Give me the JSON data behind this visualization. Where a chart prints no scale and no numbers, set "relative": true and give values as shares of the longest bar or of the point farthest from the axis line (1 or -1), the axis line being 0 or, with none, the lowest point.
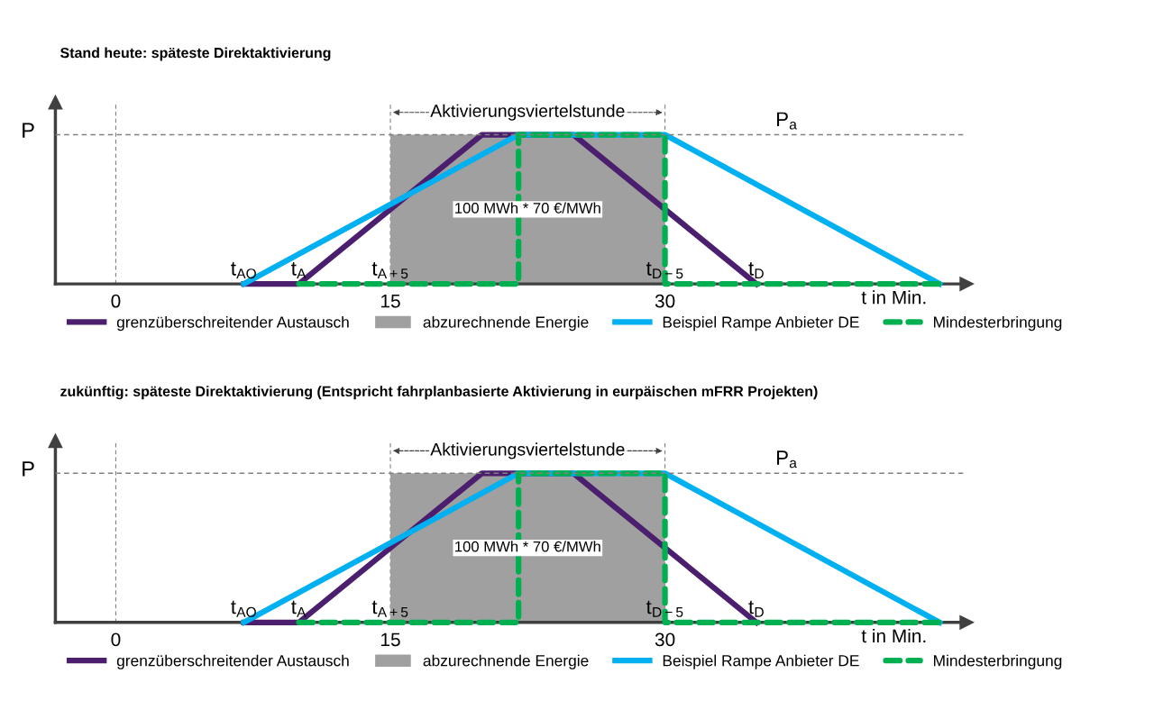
{
  "chart_data": [
    {
      "type": "line",
      "title": "Stand heute: späteste Direktaktivierung",
      "xlabel": "t in Min.",
      "ylabel": "P",
      "relative": true,
      "xlim": [
        -3.3,
        46.5
      ],
      "xticks": [
        0,
        15,
        30
      ],
      "grid": false,
      "legend": "bottom",
      "line_style": "solid",
      "marker": "none",
      "series": [
        {
          "name": "grenzüberschreitender Austausch",
          "color": "#4b1e6e",
          "x": [
            7,
            10,
            20,
            25,
            35
          ],
          "values": [
            0,
            0,
            1,
            1,
            0
          ]
        },
        {
          "name": "abzurechnende Energie",
          "type": "area",
          "color": "#a0a0a0",
          "x": [
            15,
            30
          ],
          "values": [
            1,
            1
          ]
        },
        {
          "name": "Beispiel Rampe Anbieter DE",
          "color": "#00b0f0",
          "x": [
            7,
            22,
            30,
            30,
            45
          ],
          "values": [
            0,
            1,
            1,
            1,
            0
          ]
        },
        {
          "name": "Mindesterbringung",
          "color": "#00b050",
          "line_style": "dashed",
          "x": [
            10,
            22,
            22,
            30,
            30,
            45
          ],
          "values": [
            0,
            0,
            1,
            1,
            0,
            0
          ]
        }
      ],
      "ref_lines": [
        {
          "axis": "x",
          "value": 0,
          "line_style": "dashed",
          "color": "#808080"
        },
        {
          "axis": "x",
          "value": 15,
          "line_style": "dashed",
          "color": "#808080"
        },
        {
          "axis": "x",
          "value": 30,
          "line_style": "dashed",
          "color": "#808080"
        },
        {
          "axis": "y",
          "value": 1,
          "label": "P$_{a}$",
          "line_style": "dashed",
          "color": "#808080"
        }
      ],
      "annotations": [
        "Aktivierungsviertelstunde",
        "100 MWh * 70 €/MWh",
        {
          "text": "t$_{AO}$",
          "x": 7,
          "y": 0
        },
        {
          "text": "t$_{A}$",
          "x": 10,
          "y": 0
        },
        {
          "text": "t$_{A+5}$",
          "x": 15,
          "y": 0
        },
        {
          "text": "t$_{D−5}$",
          "x": 30,
          "y": 0
        },
        {
          "text": "t$_{D}$",
          "x": 35,
          "y": 0
        }
      ]
    },
    {
      "type": "line",
      "title": "zukünftig: späteste Direktaktivierung (Entspricht fahrplanbasierte Aktivierung in eurpäischen mFRR Projekten)",
      "xlabel": "t in Min.",
      "ylabel": "P",
      "relative": true,
      "xlim": [
        -3.3,
        46.5
      ],
      "xticks": [
        0,
        15,
        30
      ],
      "grid": false,
      "legend": "bottom",
      "line_style": "solid",
      "marker": "none",
      "series": [
        {
          "name": "grenzüberschreitender Austausch",
          "color": "#4b1e6e",
          "x": [
            7,
            10,
            20,
            25,
            35
          ],
          "values": [
            0,
            0,
            1,
            1,
            0
          ]
        },
        {
          "name": "abzurechnende Energie",
          "type": "area",
          "color": "#a0a0a0",
          "x": [
            15,
            30
          ],
          "values": [
            1,
            1
          ]
        },
        {
          "name": "Beispiel Rampe Anbieter DE",
          "color": "#00b0f0",
          "x": [
            7,
            22,
            30,
            30,
            45
          ],
          "values": [
            0,
            1,
            1,
            1,
            0
          ]
        },
        {
          "name": "Mindesterbringung",
          "color": "#00b050",
          "line_style": "dashed",
          "x": [
            10,
            22,
            22,
            30,
            30,
            45
          ],
          "values": [
            0,
            0,
            1,
            1,
            0,
            0
          ]
        }
      ],
      "ref_lines": [
        {
          "axis": "x",
          "value": 0,
          "line_style": "dashed",
          "color": "#808080"
        },
        {
          "axis": "x",
          "value": 15,
          "line_style": "dashed",
          "color": "#808080"
        },
        {
          "axis": "x",
          "value": 30,
          "line_style": "dashed",
          "color": "#808080"
        },
        {
          "axis": "y",
          "value": 1,
          "label": "P$_{a}$",
          "line_style": "dashed",
          "color": "#808080"
        }
      ],
      "annotations": [
        "Aktivierungsviertelstunde",
        "100 MWh * 70 €/MWh",
        {
          "text": "t$_{AO}$",
          "x": 7,
          "y": 0
        },
        {
          "text": "t$_{A}$",
          "x": 10,
          "y": 0
        },
        {
          "text": "t$_{A+5}$",
          "x": 15,
          "y": 0
        },
        {
          "text": "t$_{D−5}$",
          "x": 30,
          "y": 0
        },
        {
          "text": "t$_{D}$",
          "x": 35,
          "y": 0
        }
      ]
    }
  ]
}
